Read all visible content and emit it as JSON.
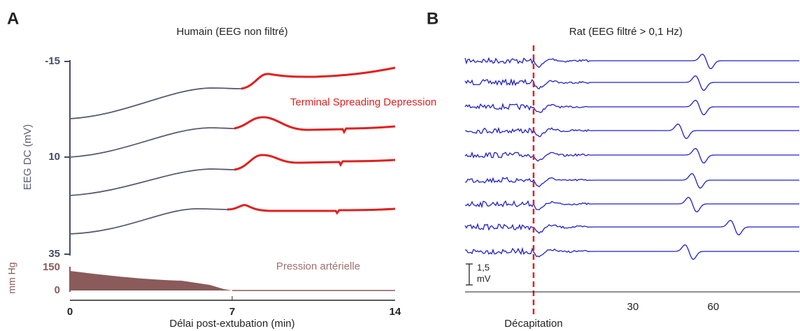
{
  "panel_a": {
    "label": "A",
    "title": "Humain (EEG non filtré)",
    "y_label": "EEG DC (mV)",
    "y_ticks": [
      "-15",
      "10",
      "35"
    ],
    "bp_label": "mm Hg",
    "bp_ticks": [
      "150",
      "0"
    ],
    "x_ticks": [
      "0",
      "7",
      "14"
    ],
    "x_label": "Délai post-extubation (min)",
    "annotation_tsd": "Terminal Spreading Depression",
    "annotation_bp": "Pression artérielle"
  },
  "panel_b": {
    "label": "B",
    "title": "Rat (EEG filtré > 0,1 Hz)",
    "scale_value": "1,5",
    "scale_unit": "mV",
    "x_ticks": [
      "30",
      "60"
    ],
    "event_label": "Décapitation"
  }
}
